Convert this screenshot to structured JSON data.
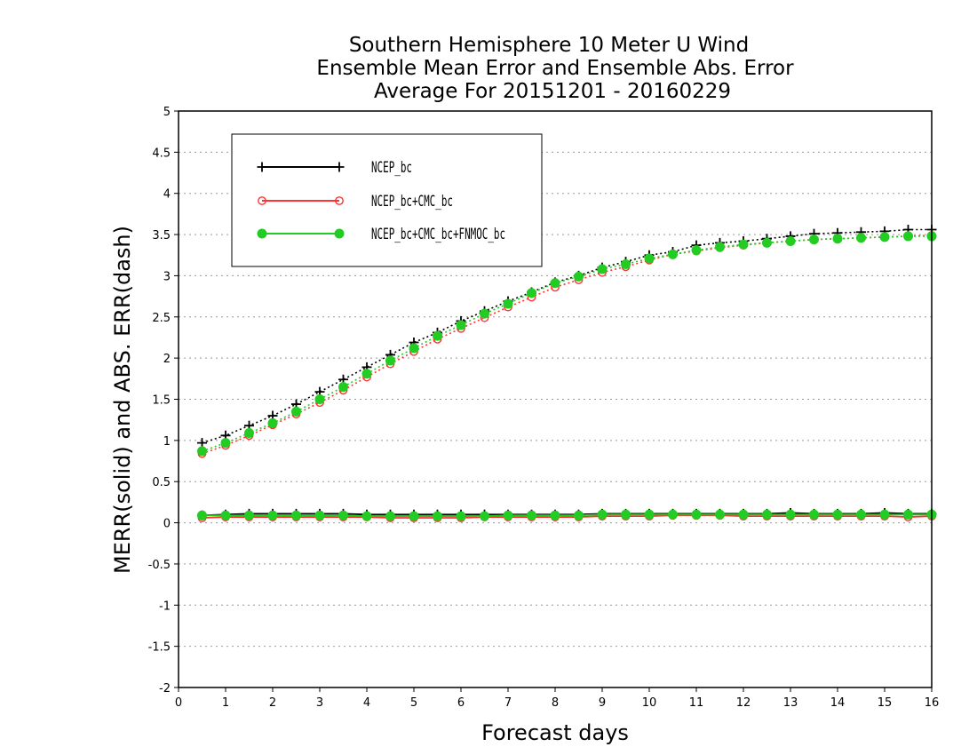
{
  "chart_data": {
    "type": "line",
    "title_lines": [
      "Southern Hemisphere 10 Meter U Wind",
      "Ensemble Mean Error and Ensemble Abs. Error",
      "Average For 20151201 - 20160229"
    ],
    "xlabel": "Forecast days",
    "ylabel": "MERR(solid) and ABS. ERR(dash)",
    "xlim": [
      0,
      16
    ],
    "ylim": [
      -2,
      5
    ],
    "x_ticks": [
      "0",
      "1",
      "2",
      "3",
      "4",
      "5",
      "6",
      "7",
      "8",
      "9",
      "10",
      "11",
      "12",
      "13",
      "14",
      "15",
      "16"
    ],
    "y_ticks": [
      "5",
      "4.5",
      "4",
      "3.5",
      "3",
      "2.5",
      "2",
      "1.5",
      "1",
      "0.5",
      "0",
      "-0.5",
      "-1",
      "-1.5",
      "-2"
    ],
    "y_tick_values": [
      5,
      4.5,
      4,
      3.5,
      3,
      2.5,
      2,
      1.5,
      1,
      0.5,
      0,
      -0.5,
      -1,
      -1.5,
      -2
    ],
    "grid": true,
    "legend_position": "top-left",
    "x": [
      0.5,
      1,
      1.5,
      2,
      2.5,
      3,
      3.5,
      4,
      4.5,
      5,
      5.5,
      6,
      6.5,
      7,
      7.5,
      8,
      8.5,
      9,
      9.5,
      10,
      10.5,
      11,
      11.5,
      12,
      12.5,
      13,
      13.5,
      14,
      14.5,
      15,
      15.5,
      16
    ],
    "series": [
      {
        "name": "NCEP_bc",
        "color": "#000000",
        "marker": "plus",
        "abs_error": [
          0.97,
          1.06,
          1.18,
          1.3,
          1.44,
          1.59,
          1.74,
          1.89,
          2.04,
          2.19,
          2.31,
          2.45,
          2.57,
          2.69,
          2.8,
          2.92,
          3.0,
          3.1,
          3.17,
          3.25,
          3.29,
          3.37,
          3.4,
          3.42,
          3.45,
          3.48,
          3.51,
          3.52,
          3.53,
          3.54,
          3.56,
          3.56
        ],
        "mean_error": [
          0.09,
          0.1,
          0.11,
          0.11,
          0.11,
          0.11,
          0.11,
          0.1,
          0.1,
          0.1,
          0.1,
          0.1,
          0.1,
          0.1,
          0.1,
          0.1,
          0.1,
          0.11,
          0.11,
          0.11,
          0.11,
          0.11,
          0.11,
          0.11,
          0.11,
          0.12,
          0.11,
          0.11,
          0.11,
          0.12,
          0.11,
          0.11
        ]
      },
      {
        "name": "NCEP_bc+CMC_bc",
        "color": "#ff3333",
        "marker": "open-circle",
        "abs_error": [
          0.84,
          0.94,
          1.06,
          1.19,
          1.32,
          1.46,
          1.61,
          1.77,
          1.93,
          2.08,
          2.23,
          2.36,
          2.49,
          2.62,
          2.74,
          2.86,
          2.95,
          3.04,
          3.11,
          3.19,
          3.26,
          3.3,
          3.34,
          3.37,
          3.4,
          3.42,
          3.44,
          3.45,
          3.46,
          3.47,
          3.48,
          3.49
        ],
        "mean_error": [
          0.06,
          0.07,
          0.07,
          0.07,
          0.07,
          0.07,
          0.07,
          0.07,
          0.06,
          0.06,
          0.06,
          0.06,
          0.07,
          0.07,
          0.07,
          0.07,
          0.07,
          0.08,
          0.08,
          0.08,
          0.09,
          0.09,
          0.09,
          0.08,
          0.08,
          0.08,
          0.08,
          0.08,
          0.08,
          0.08,
          0.07,
          0.08
        ]
      },
      {
        "name": "NCEP_bc+CMC_bc+FNMOC_bc",
        "color": "#22cc22",
        "marker": "filled-circle",
        "abs_error": [
          0.87,
          0.97,
          1.09,
          1.21,
          1.35,
          1.5,
          1.65,
          1.81,
          1.97,
          2.12,
          2.27,
          2.4,
          2.54,
          2.66,
          2.79,
          2.91,
          2.99,
          3.08,
          3.14,
          3.21,
          3.26,
          3.31,
          3.35,
          3.38,
          3.4,
          3.42,
          3.44,
          3.45,
          3.46,
          3.47,
          3.48,
          3.48
        ],
        "mean_error": [
          0.09,
          0.09,
          0.09,
          0.09,
          0.09,
          0.09,
          0.09,
          0.08,
          0.08,
          0.08,
          0.08,
          0.08,
          0.08,
          0.09,
          0.09,
          0.09,
          0.09,
          0.1,
          0.1,
          0.1,
          0.1,
          0.1,
          0.1,
          0.1,
          0.1,
          0.1,
          0.1,
          0.1,
          0.1,
          0.1,
          0.1,
          0.1
        ]
      }
    ]
  }
}
